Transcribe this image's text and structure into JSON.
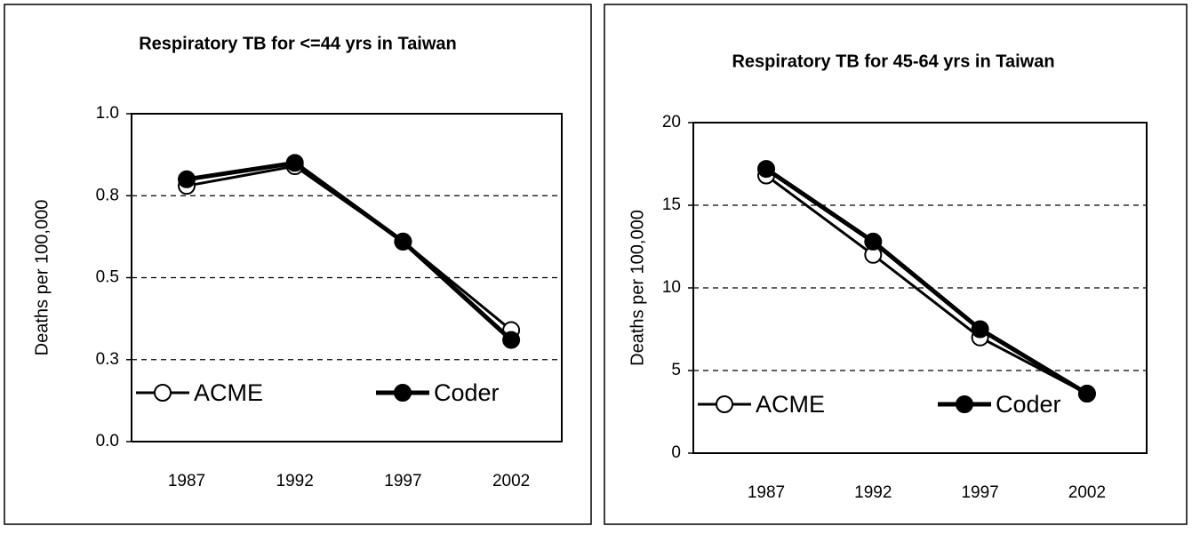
{
  "chart_data": [
    {
      "type": "line",
      "title": "Respiratory TB for <=44 yrs in Taiwan",
      "y_label": "Deaths per 100,000",
      "categories": [
        "1987",
        "1992",
        "1997",
        "2002"
      ],
      "series": [
        {
          "name": "ACME",
          "color": "#000000",
          "values": [
            0.78,
            0.84,
            0.61,
            0.34
          ]
        },
        {
          "name": "Coder",
          "color": "#000000",
          "values": [
            0.8,
            0.85,
            0.61,
            0.31
          ]
        }
      ],
      "ylim": [
        0,
        1
      ],
      "yticks": [
        {
          "value": 0,
          "label": "0.0"
        },
        {
          "value": 0.25,
          "label": "0.3"
        },
        0.5,
        {
          "value": 0.75,
          "label": "0.8"
        },
        {
          "value": 1,
          "label": "1.0"
        }
      ],
      "grid": true,
      "legend": "lower left"
    },
    {
      "type": "line",
      "title": "Respiratory TB for 45-64 yrs in Taiwan",
      "y_label": "Deaths per 100,000",
      "categories": [
        "1987",
        "1992",
        "1997",
        "2002"
      ],
      "series": [
        {
          "name": "ACME",
          "color": "#000000",
          "values": [
            16.8,
            12.0,
            7.0,
            3.6
          ]
        },
        {
          "name": "Coder",
          "color": "#000000",
          "values": [
            17.2,
            12.8,
            7.5,
            3.6
          ]
        }
      ],
      "ylim": [
        0,
        20
      ],
      "yticks": [
        0,
        5,
        10,
        15,
        20
      ],
      "grid": true,
      "legend": "lower left"
    }
  ]
}
